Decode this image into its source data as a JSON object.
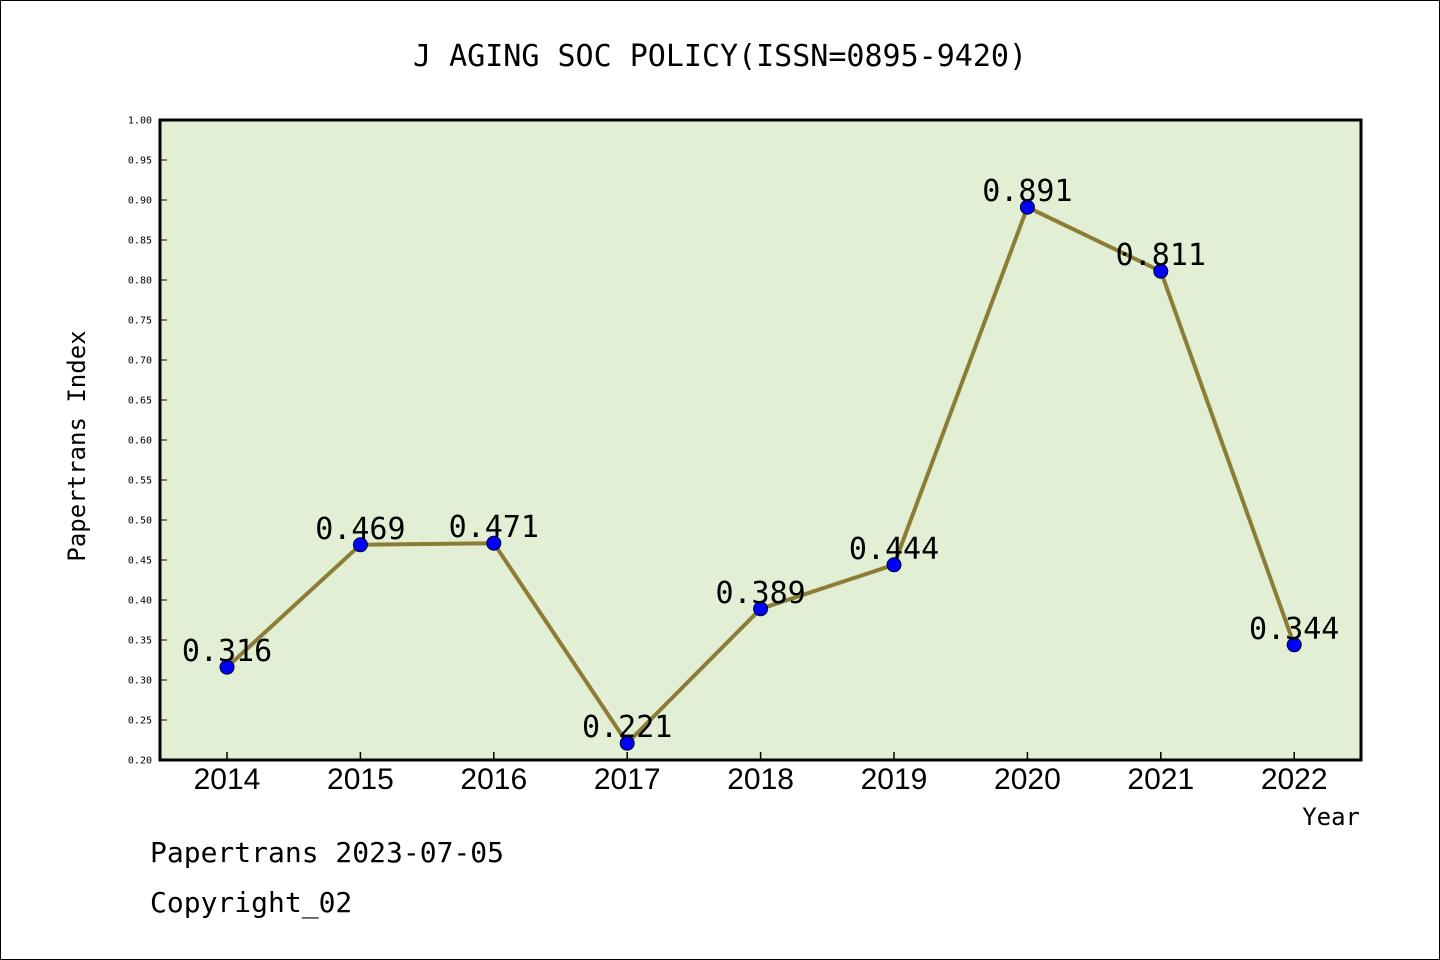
{
  "chart_data": {
    "type": "line",
    "title": "J AGING SOC POLICY(ISSN=0895-9420)",
    "xlabel": "Year",
    "ylabel": "Papertrans Index",
    "x": [
      "2014",
      "2015",
      "2016",
      "2017",
      "2018",
      "2019",
      "2020",
      "2021",
      "2022"
    ],
    "series": [
      {
        "values": [
          0.316,
          0.469,
          0.471,
          0.221,
          0.389,
          0.444,
          0.891,
          0.811,
          0.344
        ],
        "labels": [
          "0.316",
          "0.469",
          "0.471",
          "0.221",
          "0.389",
          "0.444",
          "0.891",
          "0.811",
          "0.344"
        ]
      }
    ],
    "ylim": [
      0.2,
      1.0
    ],
    "yticks": [
      "0.20",
      "0.25",
      "0.30",
      "0.35",
      "0.40",
      "0.45",
      "0.50",
      "0.55",
      "0.60",
      "0.65",
      "0.70",
      "0.75",
      "0.80",
      "0.85",
      "0.90",
      "0.95",
      "1.00"
    ],
    "grid": false,
    "legend": "none",
    "colors": {
      "plot_background": "#e2efd5",
      "line": "#8b7d35",
      "marker": "#0000ff"
    }
  },
  "footer": {
    "line1": "Papertrans 2023-07-05",
    "line2": "Copyright_02"
  }
}
